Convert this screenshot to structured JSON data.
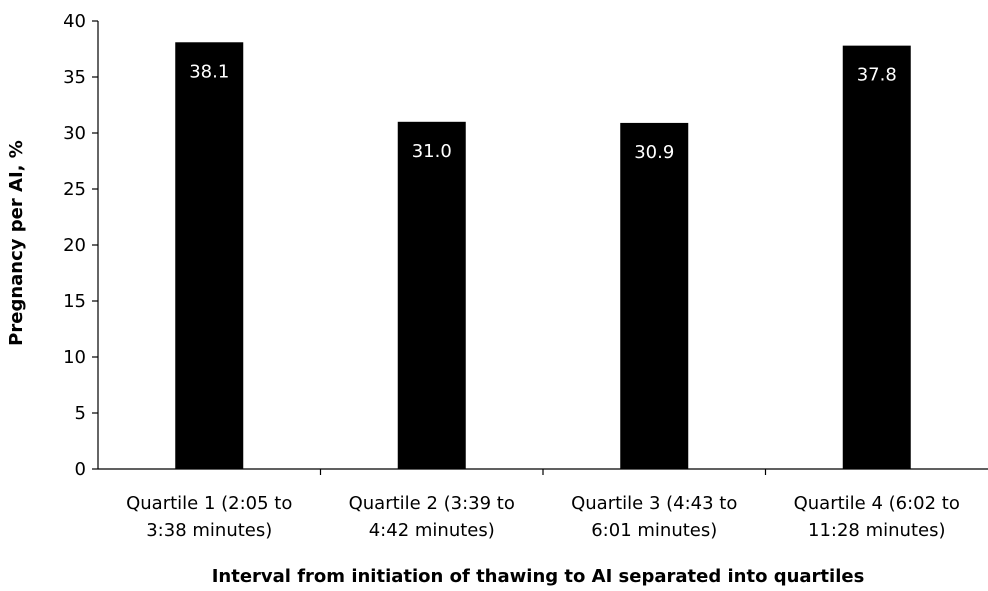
{
  "chart_data": {
    "type": "bar",
    "categories": [
      [
        "Quartile 1 (2:05 to",
        "3:38 minutes)"
      ],
      [
        "Quartile 2 (3:39 to",
        "4:42 minutes)"
      ],
      [
        "Quartile 3 (4:43 to",
        "6:01 minutes)"
      ],
      [
        "Quartile 4 (6:02 to",
        "11:28 minutes)"
      ]
    ],
    "values": [
      38.1,
      31.0,
      30.9,
      37.8
    ],
    "value_labels": [
      "38.1",
      "31.0",
      "30.9",
      "37.8"
    ],
    "xlabel": "Interval from initiation of thawing to AI separated into quartiles",
    "ylabel": "Pregnancy per AI, %",
    "ylim": [
      0,
      40
    ],
    "yticks": [
      0,
      5,
      10,
      15,
      20,
      25,
      30,
      35,
      40
    ],
    "grid": false,
    "legend": "none",
    "colors": {
      "bar": "#000000",
      "bar_label": "#ffffff",
      "axis": "#000000"
    }
  }
}
